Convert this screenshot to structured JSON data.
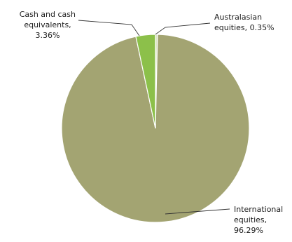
{
  "chart_data": {
    "type": "pie",
    "title": "",
    "slices": [
      {
        "name": "Australasian equities",
        "value": 0.35,
        "color": "#dfe7c6",
        "label_lines": [
          "Australasian",
          "equities, 0.35%"
        ]
      },
      {
        "name": "International equities",
        "value": 96.29,
        "color": "#a3a472",
        "label_lines": [
          "International",
          "equities,",
          "96.29%"
        ]
      },
      {
        "name": "Cash and cash equivalents",
        "value": 3.36,
        "color": "#8cc04a",
        "label_lines": [
          "Cash and cash",
          "equivalents,",
          "3.36%"
        ]
      }
    ],
    "start_angle": "12 o'clock",
    "direction": "clockwise",
    "legend": "none",
    "label_style": "leader lines"
  }
}
